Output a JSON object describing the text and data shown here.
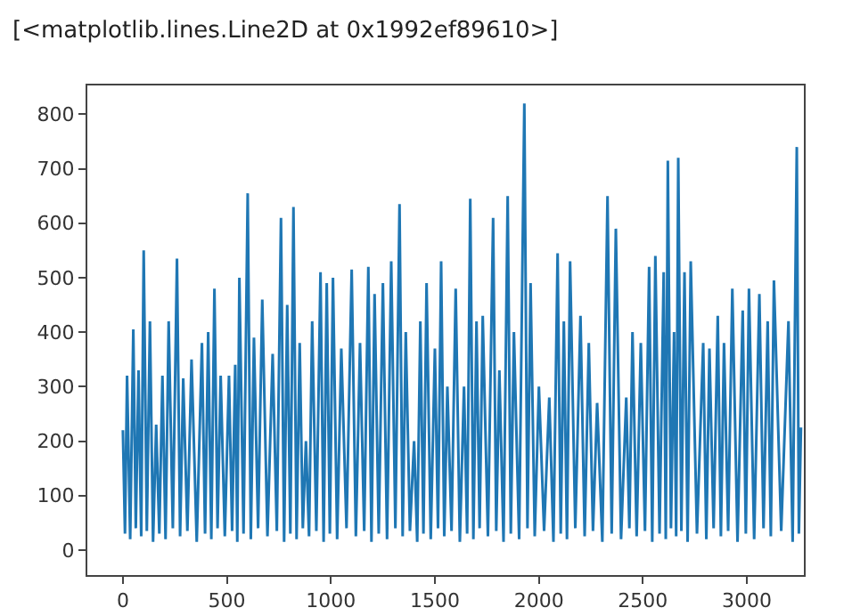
{
  "chart_data": {
    "type": "line",
    "annotations": [
      "[<matplotlib.lines.Line2D at 0x1992ef89610>]"
    ],
    "x": [
      0,
      10,
      20,
      35,
      50,
      62,
      75,
      88,
      100,
      115,
      130,
      145,
      160,
      175,
      190,
      205,
      220,
      240,
      260,
      275,
      290,
      310,
      330,
      355,
      380,
      395,
      410,
      425,
      440,
      455,
      470,
      490,
      510,
      525,
      540,
      550,
      560,
      580,
      600,
      615,
      630,
      650,
      670,
      695,
      720,
      740,
      760,
      775,
      790,
      805,
      820,
      835,
      850,
      865,
      880,
      895,
      910,
      930,
      950,
      965,
      980,
      995,
      1010,
      1030,
      1050,
      1075,
      1100,
      1120,
      1140,
      1160,
      1180,
      1195,
      1210,
      1230,
      1250,
      1270,
      1290,
      1310,
      1330,
      1345,
      1360,
      1380,
      1400,
      1415,
      1430,
      1445,
      1460,
      1480,
      1500,
      1515,
      1530,
      1545,
      1560,
      1580,
      1600,
      1620,
      1640,
      1655,
      1670,
      1685,
      1700,
      1715,
      1730,
      1755,
      1780,
      1795,
      1810,
      1830,
      1850,
      1865,
      1880,
      1905,
      1930,
      1945,
      1960,
      1980,
      2000,
      2025,
      2050,
      2070,
      2090,
      2105,
      2120,
      2135,
      2150,
      2175,
      2200,
      2220,
      2240,
      2260,
      2280,
      2305,
      2330,
      2350,
      2370,
      2395,
      2420,
      2435,
      2450,
      2470,
      2490,
      2510,
      2530,
      2545,
      2560,
      2580,
      2600,
      2610,
      2620,
      2635,
      2650,
      2660,
      2670,
      2685,
      2700,
      2715,
      2730,
      2760,
      2790,
      2805,
      2820,
      2840,
      2860,
      2875,
      2890,
      2910,
      2930,
      2955,
      2980,
      2995,
      3010,
      3035,
      3060,
      3080,
      3100,
      3115,
      3130,
      3165,
      3200,
      3220,
      3240,
      3250,
      3260
    ],
    "series": [
      {
        "color": "#1f77b4",
        "values": [
          220,
          30,
          320,
          20,
          405,
          40,
          330,
          25,
          550,
          35,
          420,
          15,
          230,
          30,
          320,
          20,
          420,
          40,
          535,
          25,
          315,
          35,
          350,
          15,
          380,
          30,
          400,
          20,
          480,
          40,
          320,
          25,
          320,
          35,
          340,
          15,
          500,
          30,
          655,
          20,
          390,
          40,
          460,
          25,
          360,
          35,
          610,
          15,
          450,
          30,
          630,
          20,
          380,
          40,
          200,
          25,
          420,
          35,
          510,
          15,
          490,
          30,
          500,
          20,
          370,
          40,
          515,
          25,
          380,
          35,
          520,
          15,
          470,
          30,
          490,
          20,
          530,
          40,
          635,
          25,
          400,
          35,
          200,
          15,
          420,
          30,
          490,
          20,
          370,
          40,
          530,
          25,
          300,
          35,
          480,
          15,
          300,
          30,
          645,
          20,
          420,
          40,
          430,
          25,
          610,
          35,
          330,
          15,
          650,
          30,
          400,
          20,
          820,
          40,
          490,
          25,
          300,
          35,
          280,
          15,
          545,
          30,
          420,
          20,
          530,
          40,
          430,
          25,
          380,
          35,
          270,
          15,
          650,
          30,
          590,
          20,
          280,
          40,
          400,
          25,
          380,
          35,
          520,
          15,
          540,
          30,
          510,
          20,
          715,
          40,
          400,
          25,
          720,
          35,
          510,
          15,
          530,
          30,
          380,
          20,
          370,
          40,
          430,
          25,
          380,
          35,
          480,
          15,
          440,
          30,
          480,
          20,
          470,
          40,
          420,
          25,
          495,
          35,
          420,
          15,
          740,
          30,
          225
        ]
      }
    ],
    "xlim": [
      -171,
      3274
    ],
    "ylim": [
      -46,
      853
    ],
    "xticks": [
      0,
      500,
      1000,
      1500,
      2000,
      2500,
      3000
    ],
    "yticks": [
      0,
      100,
      200,
      300,
      400,
      500,
      600,
      700,
      800
    ],
    "grid": false,
    "marker": "none",
    "line_style": "solid"
  }
}
